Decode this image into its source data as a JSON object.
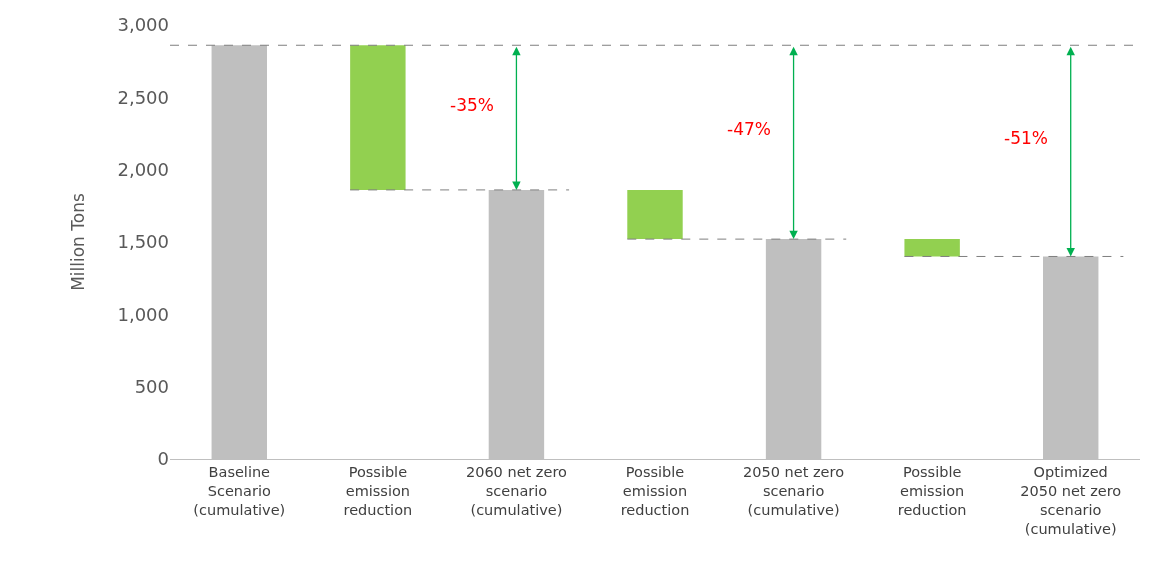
{
  "chart_data": {
    "type": "bar",
    "ylabel": "Million Tons",
    "categories": [
      "Baseline Scenario (cumulative)",
      "Possible emission reduction",
      "2060 net zero scenario (cumulative)",
      "Possible emission reduction",
      "2050 net zero scenario (cumulative)",
      "Possible emission reduction",
      "Optimized 2050 net zero scenario (cumulative)"
    ],
    "values": [
      2860,
      1000,
      1860,
      340,
      1520,
      120,
      1400
    ],
    "base": [
      0,
      1860,
      0,
      1520,
      0,
      1400,
      0
    ],
    "colors": [
      "#bfbfbf",
      "#92d050",
      "#bfbfbf",
      "#92d050",
      "#bfbfbf",
      "#92d050",
      "#bfbfbf"
    ],
    "ylim": [
      0,
      3000
    ],
    "yticks": [
      0,
      500,
      {
        "value": 1000,
        "label": "1,000"
      },
      {
        "value": 1500,
        "label": "1,500"
      },
      {
        "value": 2000,
        "label": "2,000"
      },
      {
        "value": 2500,
        "label": "2,500"
      },
      {
        "value": 3000,
        "label": "3,000"
      }
    ],
    "ref_lines": [
      {
        "axis": "y",
        "value": 2860,
        "color": "#7f7f7f",
        "line_style": "dashed"
      },
      {
        "axis": "y",
        "value": 1860,
        "color": "#7f7f7f",
        "line_style": "dashed"
      },
      {
        "axis": "y",
        "value": 1520,
        "color": "#7f7f7f",
        "line_style": "dashed"
      },
      {
        "axis": "y",
        "value": 1400,
        "color": "#7f7f7f",
        "line_style": "dashed"
      }
    ],
    "annotations": [
      "-35%",
      "-47%",
      "-51%"
    ]
  }
}
